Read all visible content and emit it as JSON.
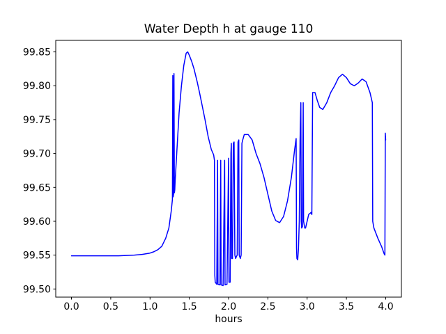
{
  "title": "Water Depth h at gauge 110",
  "xlabel": "hours",
  "chart_data": {
    "type": "line",
    "title": "Water Depth h at gauge 110",
    "xlabel": "hours",
    "ylabel": "",
    "grid": false,
    "legend": null,
    "line_color": "#0000ff",
    "xlim": [
      -0.2,
      4.2
    ],
    "ylim": [
      99.488,
      99.867
    ],
    "xticks": {
      "values": [
        0.0,
        0.5,
        1.0,
        1.5,
        2.0,
        2.5,
        3.0,
        3.5,
        4.0
      ],
      "labels": [
        "0.0",
        "0.5",
        "1.0",
        "1.5",
        "2.0",
        "2.5",
        "3.0",
        "3.5",
        "4.0"
      ]
    },
    "yticks": {
      "values": [
        99.5,
        99.55,
        99.6,
        99.65,
        99.7,
        99.75,
        99.8,
        99.85
      ],
      "labels": [
        "99.50",
        "99.55",
        "99.60",
        "99.65",
        "99.70",
        "99.75",
        "99.80",
        "99.85"
      ]
    },
    "series": [
      {
        "name": "water depth h",
        "color": "#0000ff",
        "points": [
          [
            0.0,
            99.549
          ],
          [
            0.2,
            99.549
          ],
          [
            0.4,
            99.549
          ],
          [
            0.6,
            99.549
          ],
          [
            0.8,
            99.55
          ],
          [
            0.9,
            99.551
          ],
          [
            1.0,
            99.553
          ],
          [
            1.05,
            99.555
          ],
          [
            1.1,
            99.558
          ],
          [
            1.15,
            99.563
          ],
          [
            1.2,
            99.575
          ],
          [
            1.24,
            99.59
          ],
          [
            1.27,
            99.615
          ],
          [
            1.285,
            99.632
          ],
          [
            1.29,
            99.815
          ],
          [
            1.295,
            99.636
          ],
          [
            1.3,
            99.64
          ],
          [
            1.305,
            99.818
          ],
          [
            1.31,
            99.642
          ],
          [
            1.315,
            99.646
          ],
          [
            1.32,
            99.66
          ],
          [
            1.34,
            99.7
          ],
          [
            1.37,
            99.76
          ],
          [
            1.4,
            99.8
          ],
          [
            1.43,
            99.83
          ],
          [
            1.46,
            99.848
          ],
          [
            1.48,
            99.85
          ],
          [
            1.5,
            99.845
          ],
          [
            1.53,
            99.836
          ],
          [
            1.56,
            99.825
          ],
          [
            1.6,
            99.806
          ],
          [
            1.63,
            99.79
          ],
          [
            1.66,
            99.773
          ],
          [
            1.7,
            99.75
          ],
          [
            1.74,
            99.725
          ],
          [
            1.78,
            99.706
          ],
          [
            1.81,
            99.698
          ],
          [
            1.82,
            99.69
          ],
          [
            1.825,
            99.52
          ],
          [
            1.83,
            99.51
          ],
          [
            1.85,
            99.507
          ],
          [
            1.86,
            99.69
          ],
          [
            1.865,
            99.507
          ],
          [
            1.89,
            99.506
          ],
          [
            1.9,
            99.69
          ],
          [
            1.905,
            99.506
          ],
          [
            1.93,
            99.505
          ],
          [
            1.95,
            99.69
          ],
          [
            1.955,
            99.506
          ],
          [
            1.98,
            99.507
          ],
          [
            2.0,
            99.693
          ],
          [
            2.005,
            99.51
          ],
          [
            2.02,
            99.51
          ],
          [
            2.03,
            99.7
          ],
          [
            2.035,
            99.715
          ],
          [
            2.04,
            99.545
          ],
          [
            2.05,
            99.545
          ],
          [
            2.06,
            99.715
          ],
          [
            2.07,
            99.717
          ],
          [
            2.08,
            99.55
          ],
          [
            2.09,
            99.545
          ],
          [
            2.1,
            99.548
          ],
          [
            2.11,
            99.55
          ],
          [
            2.12,
            99.717
          ],
          [
            2.13,
            99.72
          ],
          [
            2.135,
            99.55
          ],
          [
            2.15,
            99.545
          ],
          [
            2.16,
            99.55
          ],
          [
            2.17,
            99.715
          ],
          [
            2.18,
            99.72
          ],
          [
            2.2,
            99.728
          ],
          [
            2.25,
            99.728
          ],
          [
            2.3,
            99.72
          ],
          [
            2.35,
            99.7
          ],
          [
            2.4,
            99.685
          ],
          [
            2.45,
            99.665
          ],
          [
            2.5,
            99.64
          ],
          [
            2.55,
            99.615
          ],
          [
            2.6,
            99.601
          ],
          [
            2.65,
            99.598
          ],
          [
            2.7,
            99.607
          ],
          [
            2.75,
            99.63
          ],
          [
            2.8,
            99.665
          ],
          [
            2.84,
            99.705
          ],
          [
            2.86,
            99.722
          ],
          [
            2.865,
            99.56
          ],
          [
            2.87,
            99.545
          ],
          [
            2.88,
            99.543
          ],
          [
            2.89,
            99.56
          ],
          [
            2.9,
            99.6
          ],
          [
            2.91,
            99.72
          ],
          [
            2.92,
            99.775
          ],
          [
            2.925,
            99.6
          ],
          [
            2.93,
            99.59
          ],
          [
            2.94,
            99.592
          ],
          [
            2.95,
            99.775
          ],
          [
            2.955,
            99.6
          ],
          [
            2.97,
            99.59
          ],
          [
            2.98,
            99.59
          ],
          [
            3.0,
            99.6
          ],
          [
            3.02,
            99.61
          ],
          [
            3.05,
            99.613
          ],
          [
            3.06,
            99.61
          ],
          [
            3.07,
            99.79
          ],
          [
            3.1,
            99.79
          ],
          [
            3.13,
            99.778
          ],
          [
            3.16,
            99.768
          ],
          [
            3.2,
            99.765
          ],
          [
            3.25,
            99.775
          ],
          [
            3.3,
            99.79
          ],
          [
            3.35,
            99.8
          ],
          [
            3.4,
            99.812
          ],
          [
            3.45,
            99.817
          ],
          [
            3.5,
            99.812
          ],
          [
            3.55,
            99.803
          ],
          [
            3.6,
            99.8
          ],
          [
            3.65,
            99.804
          ],
          [
            3.7,
            99.81
          ],
          [
            3.75,
            99.806
          ],
          [
            3.8,
            99.79
          ],
          [
            3.83,
            99.775
          ],
          [
            3.835,
            99.6
          ],
          [
            3.85,
            99.59
          ],
          [
            3.9,
            99.575
          ],
          [
            3.95,
            99.562
          ],
          [
            3.98,
            99.552
          ],
          [
            3.99,
            99.55
          ],
          [
            3.995,
            99.73
          ],
          [
            4.0,
            99.72
          ]
        ]
      }
    ]
  }
}
